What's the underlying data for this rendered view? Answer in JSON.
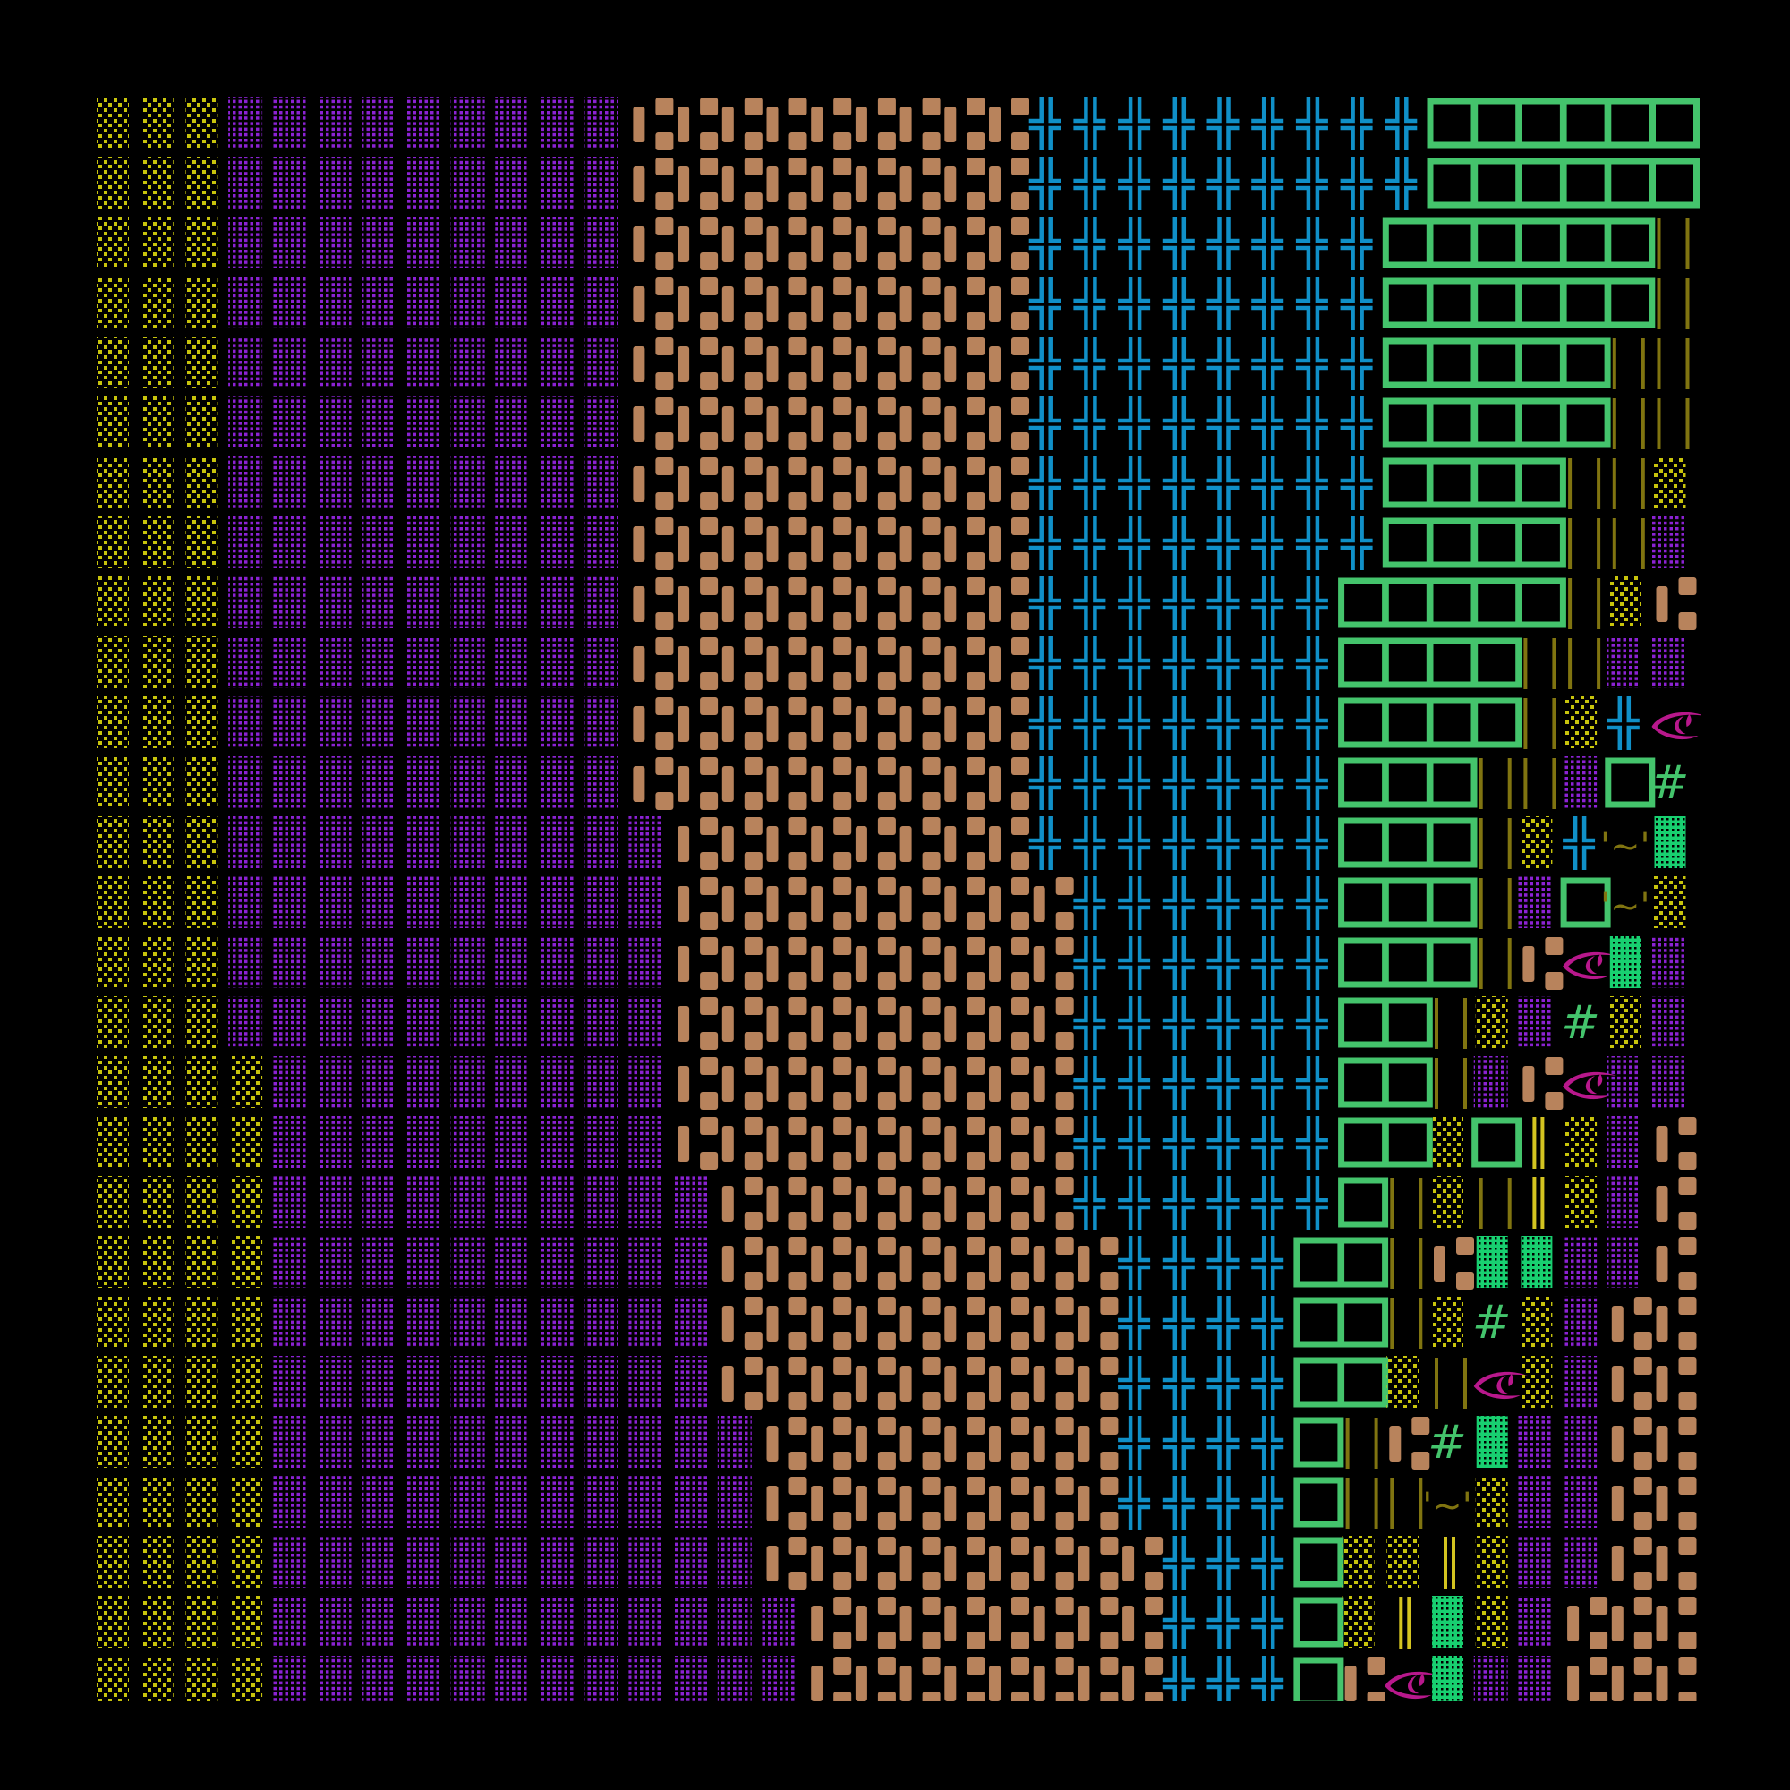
{
  "background": "#000000",
  "glyphs": {
    "Y": {
      "name": "yellow-dots",
      "color": "#c8c40c"
    },
    "P": {
      "name": "purple-dots",
      "color": "#8c22d4"
    },
    "B": {
      "name": "brown-blocks",
      "color": "#b8835c"
    },
    "C": {
      "name": "cyan-cross",
      "color": "#1090c8"
    },
    "G": {
      "name": "green-box",
      "color": "#44c46c"
    },
    "O": {
      "name": "olive-bars",
      "color": "#807410"
    },
    "L": {
      "name": "yellow-double-line",
      "color": "#d4c420"
    },
    "E": {
      "name": "eye",
      "color": "#b8188c",
      "text": ""
    },
    "H": {
      "name": "hash",
      "color": "#44c46c",
      "text": "#"
    },
    "T": {
      "name": "tilde",
      "color": "#807410",
      "text": "'~'"
    },
    "M": {
      "name": "mint-grid",
      "color": "#18d070"
    }
  },
  "grid_rows": [
    "YYYPPPPPPPPPBBBBBBBBBCCCCCCCCCGGGGGG",
    "YYYPPPPPPPPPBBBBBBBBBCCCCCCCCCGGGGGG",
    "YYYPPPPPPPPPBBBBBBBBBCCCCCCCCGGGGGGO",
    "YYYPPPPPPPPPBBBBBBBBBCCCCCCCCGGGGGGO",
    "YYYPPPPPPPPPBBBBBBBBBCCCCCCCCGGGGGOO",
    "YYYPPPPPPPPPBBBBBBBBBCCCCCCCCGGGGGOO",
    "YYYPPPPPPPPPBBBBBBBBBCCCCCCCCGGGGOOY",
    "YYYPPPPPPPPPBBBBBBBBBCCCCCCCCGGGGOOP",
    "YYYPPPPPPPPPBBBBBBBBBCCCCCCCGGGGGOYB",
    "YYYPPPPPPPPPBBBBBBBBBCCCCCCCGGGGOOPP",
    "YYYPPPPPPPPPBBBBBBBBBCCCCCCCGGGGOYCE",
    "YYYPPPPPPPPPBBBBBBBBBCCCCCCCGGGOOPGH",
    "YYYPPPPPPPPPPBBBBBBBBCCCCCCCGGGOYCTM",
    "YYYPPPPPPPPPPBBBBBBBBBCCCCCCGGGOPGTY",
    "YYYPPPPPPPPPPBBBBBBBBBCCCCCCGGGOBEMP",
    "YYYPPPPPPPPPPBBBBBBBBBCCCCCCGGOYPHYP",
    "YYYYPPPPPPPPPBBBBBBBBBCCCCCCGGOPBEPP",
    "YYYYPPPPPPPPPBBBBBBBBBCCCCCCGGYGLYPB",
    "YYYYPPPPPPPPPPBBBBBBBBCCCCCCGOYOLYPB",
    "YYYYPPPPPPPPPPBBBBBBBBBCCCCGGOBMMPPB",
    "YYYYPPPPPPPPPPBBBBBBBBBCCCCGGOYHYPBB",
    "YYYYPPPPPPPPPPBBBBBBBBBCCCCGGYOEYPBB",
    "YYYYPPPPPPPPPPPBBBBBBBBCCCCGOBHMPPBB",
    "YYYYPPPPPPPPPPPBBBBBBBBCCCCGOOTYPPBB",
    "YYYYPPPPPPPPPPPBBBBBBBBBCCCGYYLYPPBB",
    "YYYYPPPPPPPPPPPPBBBBBBBBCCCGYLMYPBBB",
    "YYYYPPPPPPPPPPPPBBBBBBBBCCCGBEMPPBBB"
  ]
}
